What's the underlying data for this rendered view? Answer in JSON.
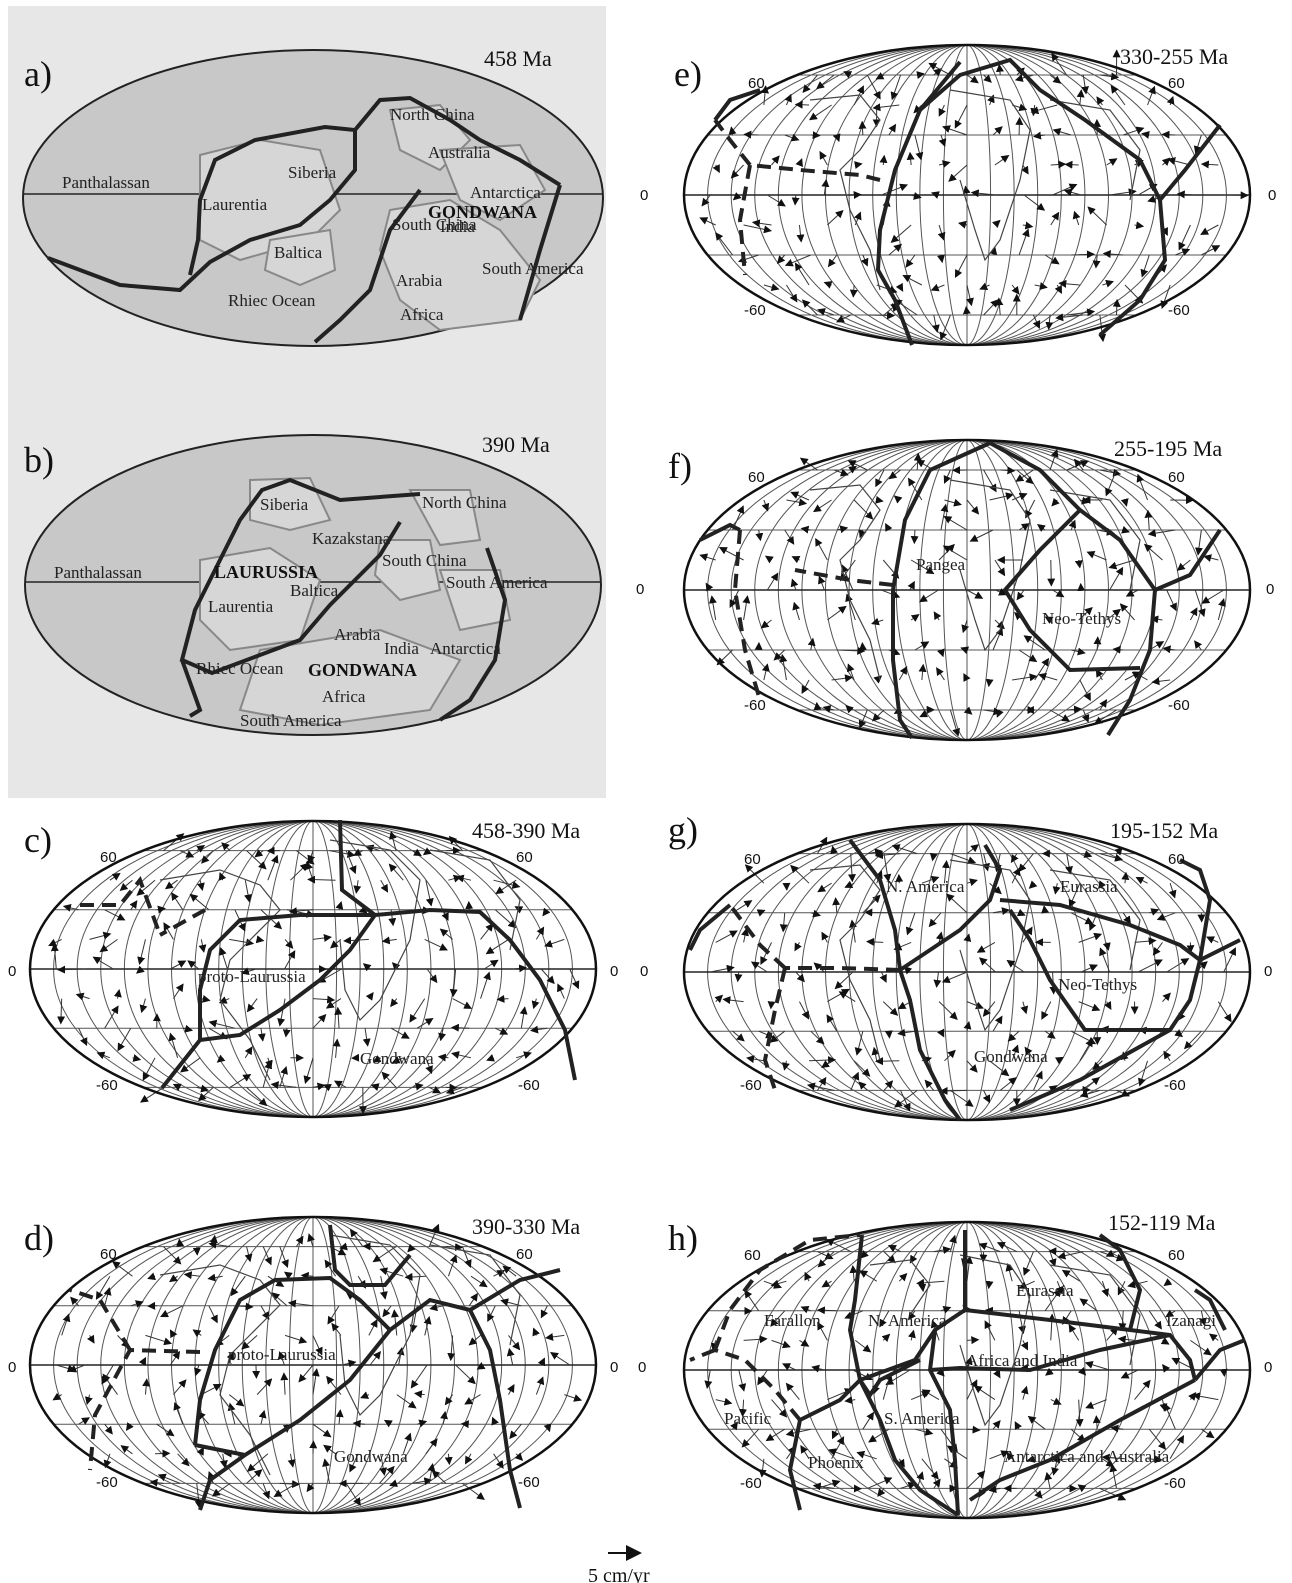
{
  "panels": {
    "a": {
      "label": "a)",
      "age": "458 Ma",
      "places": [
        "North China",
        "Australia",
        "Siberia",
        "Panthalassan",
        "Laurentia",
        "Antarctica",
        "GONDWANA",
        "South China",
        "India",
        "Baltica",
        "Arabia",
        "South America",
        "Rhiec Ocean",
        "Africa"
      ]
    },
    "b": {
      "label": "b)",
      "age": "390 Ma",
      "places": [
        "Siberia",
        "North China",
        "Kazakstana",
        "South China",
        "Panthalassan",
        "LAURUSSIA",
        "South America",
        "Baltica",
        "Laurentia",
        "Arabia",
        "India",
        "Antarctica",
        "Rhiec Ocean",
        "GONDWANA",
        "Africa",
        "South America"
      ]
    },
    "c": {
      "label": "c)",
      "age": "458-390 Ma",
      "places": [
        "proto-Laurussia",
        "Gondwana"
      ],
      "lat_labels": [
        "60",
        "60",
        "0",
        "0",
        "-60",
        "-60"
      ]
    },
    "d": {
      "label": "d)",
      "age": "390-330 Ma",
      "places": [
        "proto-Laurussia",
        "Gondwana"
      ],
      "lat_labels": [
        "60",
        "60",
        "0",
        "0",
        "-60",
        "-60"
      ]
    },
    "e": {
      "label": "e)",
      "age": "330-255 Ma",
      "places": [],
      "lat_labels": [
        "60",
        "60",
        "0",
        "0",
        "-60",
        "-60"
      ]
    },
    "f": {
      "label": "f)",
      "age": "255-195 Ma",
      "places": [
        "Pangea",
        "Neo-Tethys"
      ],
      "lat_labels": [
        "60",
        "60",
        "0",
        "0",
        "-60",
        "-60"
      ]
    },
    "g": {
      "label": "g)",
      "age": "195-152 Ma",
      "places": [
        "N. America",
        "Eurassia",
        "Neo-Tethys",
        "Gondwana"
      ],
      "lat_labels": [
        "60",
        "60",
        "0",
        "0",
        "-60",
        "-60"
      ]
    },
    "h": {
      "label": "h)",
      "age": "152-119 Ma",
      "places": [
        "Eurassia",
        "Farallon",
        "N. America",
        "Izanagi",
        "Africa and India",
        "Pacific",
        "S. America",
        "Phoenix",
        "Antarctica and Australia"
      ],
      "lat_labels": [
        "60",
        "60",
        "0",
        "0",
        "-60",
        "-60"
      ]
    }
  },
  "scale": {
    "label": "5 cm/yr"
  }
}
